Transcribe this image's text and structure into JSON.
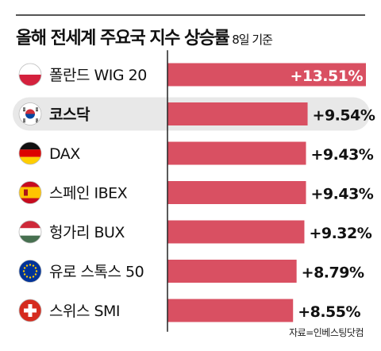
{
  "header": {
    "title": "올해 전세계 주요국 지수 상승률",
    "subtitle": "8일 기준"
  },
  "source": "자료=인베스팅닷컴",
  "colors": {
    "bar": "#d95062",
    "highlight_row": "#e8e8e8",
    "label_on_bar": "#ffffff",
    "label_off_bar": "#111111",
    "axis": "#222222"
  },
  "chart_data": {
    "type": "bar",
    "orientation": "horizontal",
    "categories": [
      "폴란드 WIG 20",
      "코스닥",
      "DAX",
      "스페인 IBEX",
      "헝가리 BUX",
      "유로 스톡스 50",
      "스위스 SMI"
    ],
    "values": [
      13.51,
      9.54,
      9.43,
      9.43,
      9.32,
      8.79,
      8.55
    ],
    "value_labels": [
      "+13.51%",
      "+9.54%",
      "+9.43%",
      "+9.43%",
      "+9.32%",
      "+8.79%",
      "+8.55%"
    ],
    "flags": [
      "poland-flag-icon",
      "south-korea-flag-icon",
      "germany-flag-icon",
      "spain-flag-icon",
      "hungary-flag-icon",
      "eu-flag-icon",
      "switzerland-flag-icon"
    ],
    "highlighted": "코스닥",
    "xlim": [
      0,
      13.51
    ],
    "grid": false
  }
}
